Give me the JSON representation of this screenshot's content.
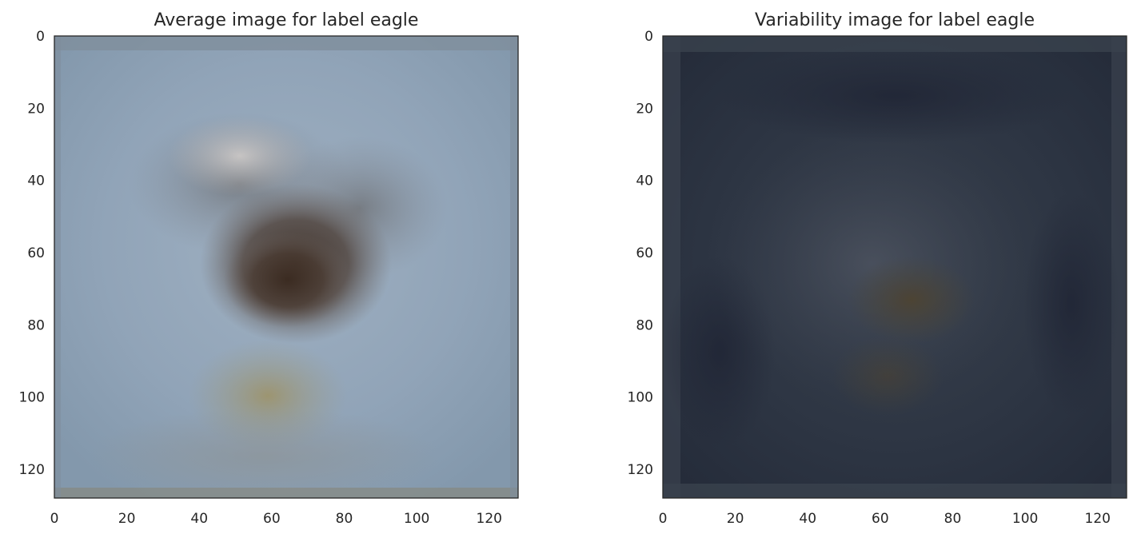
{
  "chart_data": [
    {
      "type": "heatmap",
      "title": "Average image for label eagle",
      "xlabel": "",
      "ylabel": "",
      "xlim": [
        0,
        128
      ],
      "ylim": [
        128,
        0
      ],
      "xticks": [
        0,
        20,
        40,
        60,
        80,
        100,
        120
      ],
      "yticks": [
        0,
        20,
        40,
        60,
        80,
        100,
        120
      ],
      "grid": false,
      "image_palette": {
        "background": "#8ea3b8",
        "border": "#7f8e9c",
        "body": "#3f3026",
        "head": "#c9c3bf",
        "talons": "#9c8c5c"
      }
    },
    {
      "type": "heatmap",
      "title": "Variability image for label eagle",
      "xlabel": "",
      "ylabel": "",
      "xlim": [
        0,
        128
      ],
      "ylim": [
        128,
        0
      ],
      "xticks": [
        0,
        20,
        40,
        60,
        80,
        100,
        120
      ],
      "yticks": [
        0,
        20,
        40,
        60,
        80,
        100,
        120
      ],
      "grid": false,
      "image_palette": {
        "background": "#2b3442",
        "border": "#3a424e",
        "body": "#4f4633",
        "head": "#3f4656",
        "talons": "#4c4a3e"
      }
    }
  ]
}
